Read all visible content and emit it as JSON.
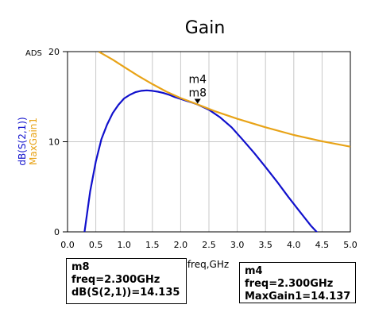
{
  "chart_data": {
    "type": "line",
    "title": "Gain",
    "corner_label": "ADS",
    "xlabel": "freq,GHz",
    "ylabels": [
      "dB(S(2,1))",
      "MaxGain1"
    ],
    "xlim": [
      0.0,
      5.0
    ],
    "ylim": [
      0,
      20
    ],
    "x_ticks": [
      "0.0",
      "0.5",
      "1.0",
      "1.5",
      "2.0",
      "2.5",
      "3.0",
      "3.5",
      "4.0",
      "4.5",
      "5.0"
    ],
    "y_ticks": [
      "0",
      "10",
      "20"
    ],
    "grid": true,
    "colors": {
      "dB(S(2,1))": "#1010cc",
      "MaxGain1": "#e8a317"
    },
    "series": [
      {
        "name": "dB(S(2,1))",
        "x": [
          0.3,
          0.4,
          0.5,
          0.6,
          0.7,
          0.8,
          0.9,
          1.0,
          1.1,
          1.2,
          1.3,
          1.4,
          1.5,
          1.6,
          1.7,
          1.8,
          1.9,
          2.0,
          2.1,
          2.2,
          2.3,
          2.5,
          2.7,
          2.9,
          3.1,
          3.3,
          3.5,
          3.7,
          3.9,
          4.1,
          4.3,
          4.45
        ],
        "y": [
          0.0,
          4.5,
          7.8,
          10.3,
          11.9,
          13.2,
          14.1,
          14.8,
          15.2,
          15.5,
          15.65,
          15.7,
          15.65,
          15.55,
          15.4,
          15.2,
          14.95,
          14.75,
          14.55,
          14.35,
          14.135,
          13.55,
          12.7,
          11.6,
          10.2,
          8.75,
          7.2,
          5.6,
          3.9,
          2.3,
          0.7,
          -0.3
        ]
      },
      {
        "name": "MaxGain1",
        "x": [
          0.55,
          0.8,
          1.0,
          1.25,
          1.5,
          1.75,
          2.0,
          2.3,
          2.6,
          3.0,
          3.5,
          4.0,
          4.5,
          5.0
        ],
        "y": [
          20.0,
          19.1,
          18.3,
          17.3,
          16.4,
          15.55,
          14.85,
          14.137,
          13.4,
          12.55,
          11.6,
          10.75,
          10.05,
          9.45
        ]
      }
    ],
    "marker": {
      "x": 2.3,
      "y": 14.137,
      "labels": [
        "m4",
        "m8"
      ]
    }
  },
  "annotations": {
    "m8": {
      "name": "m8",
      "freq": "freq=2.300GHz",
      "value": "dB(S(2,1))=14.135"
    },
    "m4": {
      "name": "m4",
      "freq": "freq=2.300GHz",
      "value": "MaxGain1=14.137"
    }
  }
}
